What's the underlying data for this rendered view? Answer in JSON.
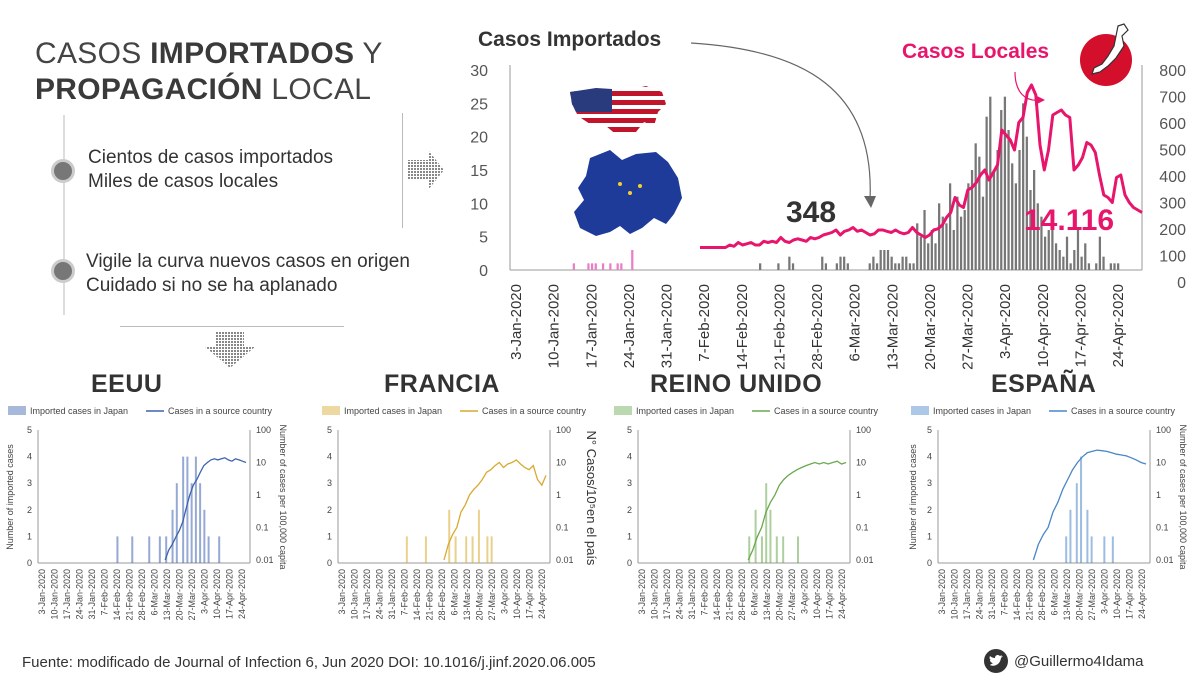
{
  "title": {
    "line1_a": "CASOS ",
    "line1_b": "IMPORTADOS",
    "line1_c": " Y",
    "line2_a": "PROPAGACIÓN",
    "line2_b": " LOCAL"
  },
  "bullets": [
    {
      "line1": "Cientos de casos importados",
      "line2": "Miles de casos locales"
    },
    {
      "line1": "Vigile la curva nuevos casos en origen",
      "line2": "Cuidado si no se ha aplanado"
    }
  ],
  "annotations": {
    "imported_label": "Casos Importados",
    "local_label": "Casos Locales",
    "imported_total": "348",
    "local_total": "14.116"
  },
  "small_axis_note": "N° Casos/10⁵en el país",
  "countries": [
    "EEUU",
    "FRANCIA",
    "REINO UNIDO",
    "ESPAÑA"
  ],
  "footer": {
    "source": "Fuente: modificado de Journal of Infection 6, Jun 2020 DOI: 10.1016/j.jinf.2020.06.005",
    "handle": "@Guillermo4Idama"
  },
  "colors": {
    "local": "#e8156d",
    "imported": "#777777",
    "pink_bars": "#e87fc8",
    "usa": "#3f62b0",
    "france": "#d9a92f",
    "uk": "#6aa84f",
    "spain": "#4a86c8"
  },
  "chart_data": [
    {
      "type": "bar+line",
      "dates": [
        "3-Jan-2020",
        "10-Jan-2020",
        "17-Jan-2020",
        "24-Jan-2020",
        "31-Jan-2020",
        "7-Feb-2020",
        "14-Feb-2020",
        "21-Feb-2020",
        "28-Feb-2020",
        "6-Mar-2020",
        "13-Mar-2020",
        "20-Mar-2020",
        "27-Mar-2020",
        "3-Apr-2020",
        "10-Apr-2020",
        "17-Apr-2020",
        "24-Apr-2020"
      ],
      "left_ticks": [
        0,
        5,
        10,
        15,
        20,
        25,
        30
      ],
      "right_ticks": [
        0,
        100,
        200,
        300,
        400,
        500,
        600,
        700,
        800
      ],
      "left_ylim": [
        0,
        30
      ],
      "right_ylim": [
        0,
        800
      ],
      "bars_imported": [
        0,
        0,
        0,
        0,
        0,
        0,
        0,
        0,
        0,
        0,
        0,
        0,
        0,
        0,
        0,
        0,
        0,
        1,
        0,
        0,
        0,
        1,
        1,
        1,
        0,
        1,
        0,
        1,
        0,
        1,
        1,
        0,
        0,
        3,
        0,
        0,
        0,
        0,
        0,
        0,
        0,
        0,
        0,
        0,
        0,
        0,
        0,
        0,
        0,
        0,
        0,
        0,
        0,
        0,
        0,
        0,
        0,
        0,
        0,
        0,
        0,
        0,
        0,
        0,
        0,
        0,
        0,
        0,
        1,
        0,
        0,
        0,
        0,
        1,
        0,
        0,
        2,
        1,
        0,
        0,
        0,
        0,
        0,
        0,
        0,
        2,
        1,
        0,
        0,
        1,
        2,
        2,
        1,
        0,
        0,
        0,
        0,
        0,
        1,
        2,
        1,
        3,
        3,
        3,
        2,
        1,
        1,
        2,
        2,
        1,
        1,
        7,
        5,
        9,
        4,
        6,
        4,
        10,
        8,
        7,
        13,
        6,
        11,
        8,
        9,
        13,
        15,
        19,
        17,
        11,
        23,
        26,
        15,
        18,
        24,
        26,
        21,
        16,
        13,
        18,
        25,
        20,
        12,
        15,
        10,
        8,
        5,
        6,
        7,
        4,
        3,
        2,
        5,
        1,
        3,
        6,
        2,
        4,
        1,
        0,
        1,
        5,
        2,
        0,
        1,
        1,
        1,
        0,
        0,
        0,
        0,
        0,
        0
      ],
      "pink_bar_indices": [
        17,
        21,
        22,
        23,
        25,
        27,
        29,
        30,
        33
      ],
      "local_line": [
        90,
        90,
        90,
        90,
        90,
        90,
        90,
        100,
        95,
        110,
        100,
        105,
        110,
        100,
        100,
        115,
        110,
        115,
        110,
        130,
        115,
        110,
        120,
        125,
        120,
        115,
        130,
        125,
        130,
        140,
        145,
        150,
        160,
        140,
        155,
        160,
        170,
        155,
        160,
        150,
        140,
        145,
        160,
        160,
        155,
        150,
        160,
        150,
        145,
        150,
        170,
        150,
        140,
        130,
        140,
        160,
        165,
        180,
        210,
        230,
        290,
        260,
        250,
        320,
        330,
        350,
        380,
        400,
        360,
        390,
        420,
        560,
        540,
        520,
        480,
        590,
        610,
        710,
        740,
        700,
        500,
        400,
        480,
        620,
        630,
        640,
        620,
        610,
        400,
        420,
        450,
        510,
        500,
        470,
        380,
        300,
        290,
        270,
        370,
        380,
        300,
        270,
        250,
        240,
        230
      ],
      "imported_total": 348,
      "local_total": 14116
    },
    {
      "type": "bar+line",
      "panel": "EEUU",
      "ylabel_left": "Number of imported cases",
      "ylabel_right": "Number of cases per 100,000 capita",
      "legend": [
        "Imported cases in Japan",
        "Cases in a source country"
      ],
      "left_ticks": [
        0,
        1,
        2,
        3,
        4,
        5
      ],
      "right_ticks": [
        0.01,
        0.1,
        1,
        10,
        100
      ],
      "dates": [
        "3-Jan-2020",
        "10-Jan-2020",
        "17-Jan-2020",
        "24-Jan-2020",
        "31-Jan-2020",
        "7-Feb-2020",
        "14-Feb-2020",
        "21-Feb-2020",
        "28-Feb-2020",
        "6-Mar-2020",
        "13-Mar-2020",
        "20-Mar-2020",
        "27-Mar-2020",
        "3-Apr-2020",
        "10-Apr-2020",
        "17-Apr-2020",
        "24-Apr-2020"
      ]
    },
    {
      "type": "bar+line",
      "panel": "FRANCIA",
      "legend": [
        "Imported cases in Japan",
        "Cases in a source country"
      ],
      "left_ticks": [
        0,
        1,
        2,
        3,
        4,
        5
      ],
      "right_ticks": [
        0.01,
        0.1,
        1,
        10,
        100
      ],
      "dates": [
        "3-Jan-2020",
        "10-Jan-2020",
        "17-Jan-2020",
        "24-Jan-2020",
        "31-Jan-2020",
        "7-Feb-2020",
        "14-Feb-2020",
        "21-Feb-2020",
        "28-Feb-2020",
        "6-Mar-2020",
        "13-Mar-2020",
        "20-Mar-2020",
        "27-Mar-2020",
        "3-Apr-2020",
        "10-Apr-2020",
        "17-Apr-2020",
        "24-Apr-2020"
      ]
    },
    {
      "type": "bar+line",
      "panel": "REINO UNIDO",
      "legend": [
        "Imported cases in Japan",
        "Cases in a source country"
      ],
      "left_ticks": [
        0,
        1,
        2,
        3,
        4,
        5
      ],
      "right_ticks": [
        0.01,
        0.1,
        1,
        10,
        100
      ],
      "dates": [
        "3-Jan-2020",
        "10-Jan-2020",
        "17-Jan-2020",
        "24-Jan-2020",
        "31-Jan-2020",
        "7-Feb-2020",
        "14-Feb-2020",
        "21-Feb-2020",
        "28-Feb-2020",
        "6-Mar-2020",
        "13-Mar-2020",
        "20-Mar-2020",
        "27-Mar-2020",
        "3-Apr-2020",
        "10-Apr-2020",
        "17-Apr-2020",
        "24-Apr-2020"
      ]
    },
    {
      "type": "bar+line",
      "panel": "ESPAÑA",
      "ylabel_left": "Number of imported cases",
      "ylabel_right": "Number of cases per 100,000 capita",
      "legend": [
        "Imported cases in Japan",
        "Cases in a source country"
      ],
      "left_ticks": [
        0,
        1,
        2,
        3,
        4,
        5
      ],
      "right_ticks": [
        0.01,
        0.1,
        1,
        10,
        100
      ],
      "dates": [
        "3-Jan-2020",
        "10-Jan-2020",
        "17-Jan-2020",
        "24-Jan-2020",
        "31-Jan-2020",
        "7-Feb-2020",
        "14-Feb-2020",
        "21-Feb-2020",
        "28-Feb-2020",
        "6-Mar-2020",
        "13-Mar-2020",
        "20-Mar-2020",
        "27-Mar-2020",
        "3-Apr-2020",
        "10-Apr-2020",
        "17-Apr-2020",
        "24-Apr-2020"
      ]
    }
  ]
}
